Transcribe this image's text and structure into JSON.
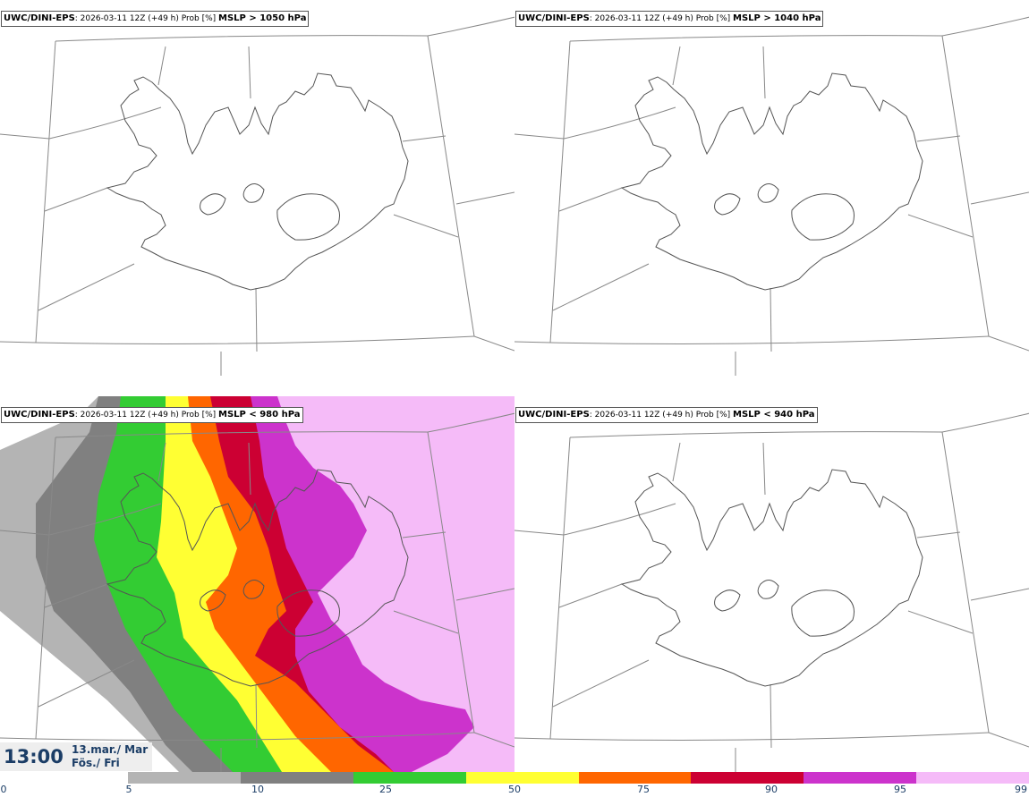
{
  "panels": [
    {
      "model": "UWC/DINI-EPS",
      "meta": ": 2026-03-11 12Z (+49 h) Prob [%] ",
      "threshold": "MSLP > 1050 hPa"
    },
    {
      "model": "UWC/DINI-EPS",
      "meta": ": 2026-03-11 12Z (+49 h) Prob [%] ",
      "threshold": "MSLP > 1040 hPa"
    },
    {
      "model": "UWC/DINI-EPS",
      "meta": ": 2026-03-11 12Z (+49 h) Prob [%] ",
      "threshold": "MSLP < 980 hPa"
    },
    {
      "model": "UWC/DINI-EPS",
      "meta": ": 2026-03-11 12Z (+49 h) Prob [%] ",
      "threshold": "MSLP < 940 hPa"
    }
  ],
  "valid_time": {
    "time": "13:00",
    "date_line1": "13.mar./ Mar",
    "date_line2": "Fös./ Fri"
  },
  "colorbar": {
    "ticks": [
      "0",
      "5",
      "10",
      "25",
      "50",
      "75",
      "90",
      "95",
      "99"
    ],
    "colors": [
      "#b4b4b4",
      "#808080",
      "#33cc33",
      "#ffff33",
      "#ff6600",
      "#cc0033",
      "#cc33cc",
      "#f5bbf8"
    ]
  }
}
